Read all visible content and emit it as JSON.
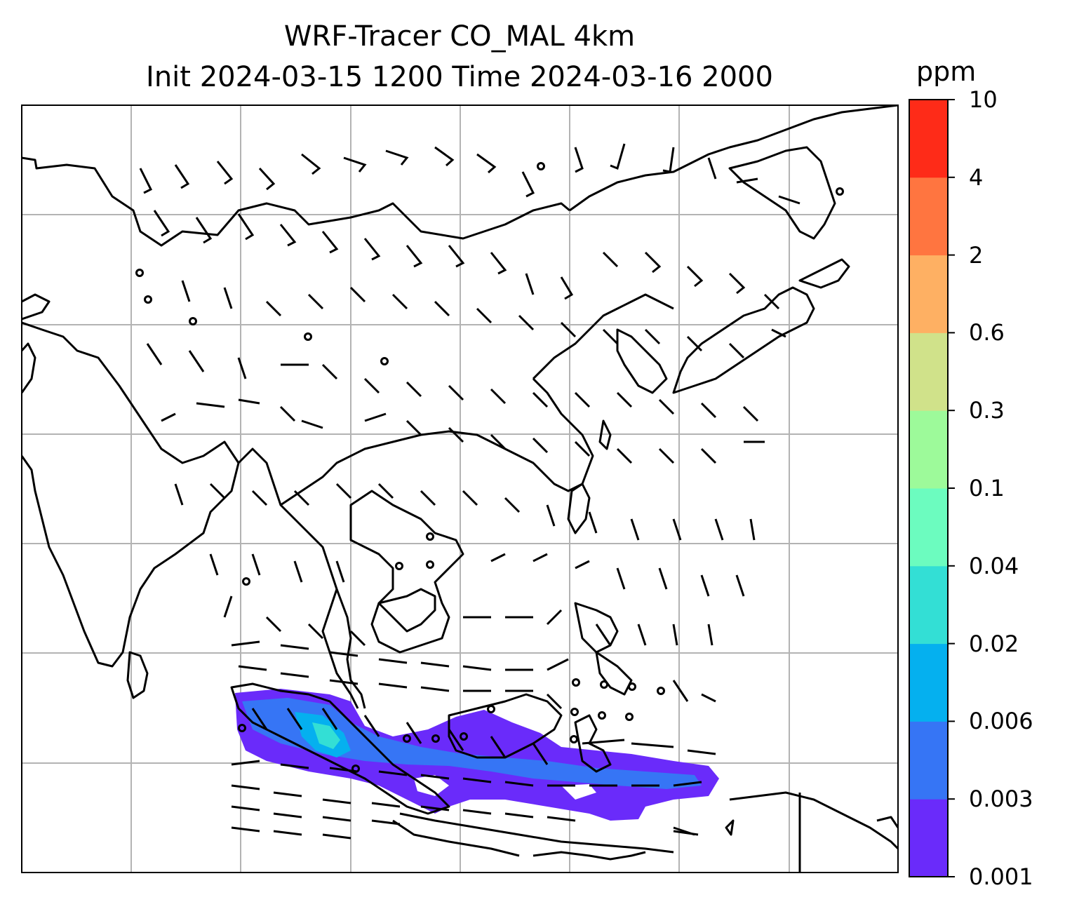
{
  "title": {
    "line1": "WRF-Tracer CO_MAL 4km",
    "line2": "Init 2024-03-15 1200 Time 2024-03-16 2000"
  },
  "colorbar": {
    "unit": "ppm",
    "levels": [
      "0.001",
      "0.003",
      "0.006",
      "0.02",
      "0.04",
      "0.1",
      "0.3",
      "0.6",
      "2",
      "4",
      "10"
    ],
    "colors": [
      "#6a2bfa",
      "#3675f5",
      "#05b0ef",
      "#33dfd5",
      "#6cfcbf",
      "#9dfa9a",
      "#d0e28a",
      "#feb063",
      "#ff7540",
      "#fe2b18"
    ]
  },
  "map": {
    "grid_lines": true,
    "features": [
      "coastlines",
      "country-borders",
      "wind-barbs",
      "tracer-concentration-fill"
    ]
  }
}
